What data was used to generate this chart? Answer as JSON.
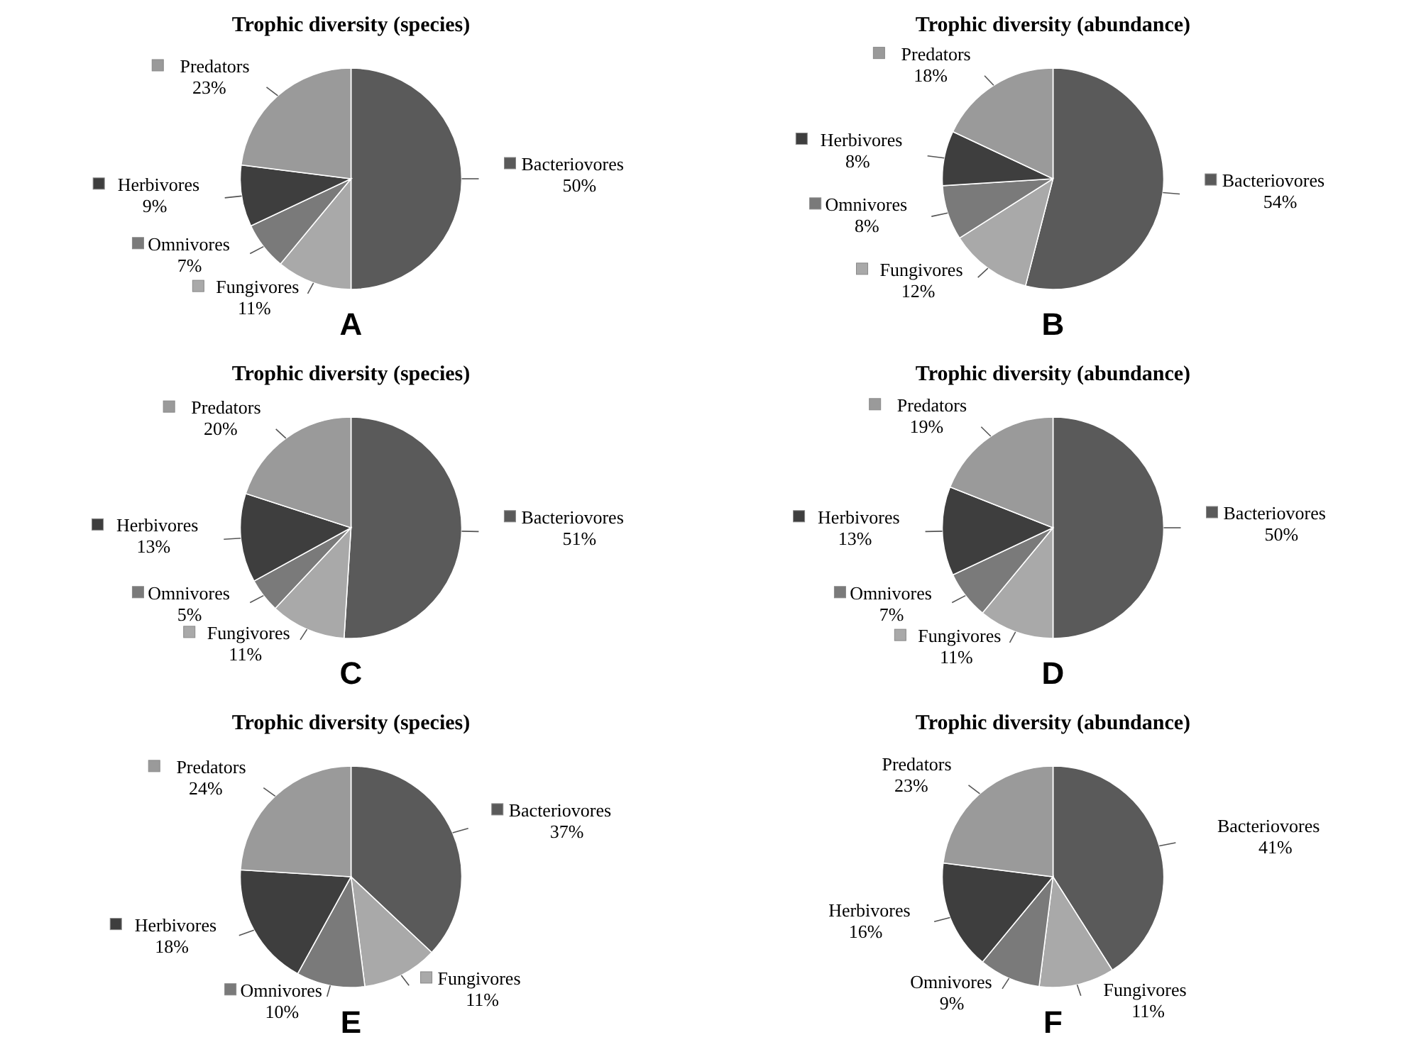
{
  "chart_data": [
    {
      "type": "pie",
      "title": "Trophic diversity (species)",
      "categories": [
        "Bacteriovores",
        "Fungivores",
        "Omnivores",
        "Herbivores",
        "Predators"
      ],
      "values": [
        50,
        11,
        7,
        9,
        23
      ],
      "value_labels": [
        "50%",
        "11%",
        "7%",
        "9%",
        "23%"
      ],
      "colors": [
        "#5a5a5a",
        "#a9a9a9",
        "#7a7a7a",
        "#3e3e3e",
        "#9a9a9a"
      ],
      "legend": "right",
      "annotations": [
        "A"
      ]
    },
    {
      "type": "pie",
      "title": "Trophic diversity (abundance)",
      "categories": [
        "Bacteriovores",
        "Fungivores",
        "Omnivores",
        "Herbivores",
        "Predators"
      ],
      "values": [
        54,
        12,
        8,
        8,
        18
      ],
      "value_labels": [
        "54%",
        "12%",
        "8%",
        "8%",
        "18%"
      ],
      "colors": [
        "#5a5a5a",
        "#a9a9a9",
        "#7a7a7a",
        "#3e3e3e",
        "#9a9a9a"
      ],
      "legend": "right",
      "annotations": [
        "B"
      ]
    },
    {
      "type": "pie",
      "title": "Trophic diversity (species)",
      "categories": [
        "Bacteriovores",
        "Fungivores",
        "Omnivores",
        "Herbivores",
        "Predators"
      ],
      "values": [
        51,
        11,
        5,
        13,
        20
      ],
      "value_labels": [
        "51%",
        "11%",
        "5%",
        "13%",
        "20%"
      ],
      "colors": [
        "#5a5a5a",
        "#a9a9a9",
        "#7a7a7a",
        "#3e3e3e",
        "#9a9a9a"
      ],
      "legend": "right",
      "annotations": [
        "C"
      ]
    },
    {
      "type": "pie",
      "title": "Trophic diversity (abundance)",
      "categories": [
        "Bacteriovores",
        "Fungivores",
        "Omnivores",
        "Herbivores",
        "Predators"
      ],
      "values": [
        50,
        11,
        7,
        13,
        19
      ],
      "value_labels": [
        "50%",
        "11%",
        "7%",
        "13%",
        "19%"
      ],
      "colors": [
        "#5a5a5a",
        "#a9a9a9",
        "#7a7a7a",
        "#3e3e3e",
        "#9a9a9a"
      ],
      "legend": "right",
      "annotations": [
        "D"
      ]
    },
    {
      "type": "pie",
      "title": "Trophic diversity (species)",
      "categories": [
        "Bacteriovores",
        "Fungivores",
        "Omnivores",
        "Herbivores",
        "Predators"
      ],
      "values": [
        37,
        11,
        10,
        18,
        24
      ],
      "value_labels": [
        "37%",
        "11%",
        "10%",
        "18%",
        "24%"
      ],
      "colors": [
        "#5a5a5a",
        "#a9a9a9",
        "#7a7a7a",
        "#3e3e3e",
        "#9a9a9a"
      ],
      "legend": "right",
      "annotations": [
        "E"
      ]
    },
    {
      "type": "pie",
      "title": "Trophic diversity (abundance)",
      "categories": [
        "Bacteriovores",
        "Fungivores",
        "Omnivores",
        "Herbivores",
        "Predators"
      ],
      "values": [
        41,
        11,
        9,
        16,
        23
      ],
      "value_labels": [
        "41%",
        "11%",
        "9%",
        "16%",
        "23%"
      ],
      "colors": [
        "#5a5a5a",
        "#a9a9a9",
        "#7a7a7a",
        "#3e3e3e",
        "#9a9a9a"
      ],
      "annotations": [
        "F"
      ]
    }
  ]
}
